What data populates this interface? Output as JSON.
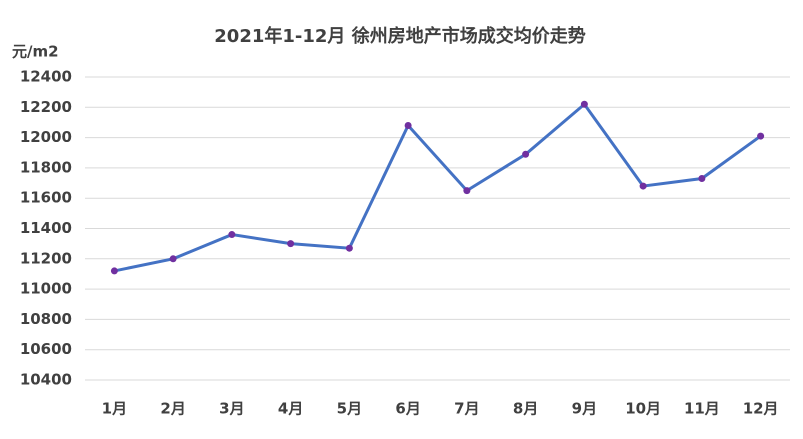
{
  "chart_data": {
    "type": "line",
    "title": "2021年1-12月 徐州房地产市场成交均价走势",
    "y_label": "元/m2",
    "categories": [
      "1月",
      "2月",
      "3月",
      "4月",
      "5月",
      "6月",
      "7月",
      "8月",
      "9月",
      "10月",
      "11月",
      "12月"
    ],
    "series": [
      {
        "name": "成交均价",
        "color": "#4472c4",
        "marker_color": "#7030a0",
        "values": [
          11120,
          11200,
          11360,
          11300,
          11270,
          12080,
          11650,
          11890,
          12220,
          11680,
          11730,
          12010
        ]
      }
    ],
    "ylim": [
      10400,
      12400
    ],
    "yticks": [
      10400,
      10600,
      10800,
      11000,
      11200,
      11400,
      11600,
      11800,
      12000,
      12200,
      12400
    ],
    "grid": true
  }
}
